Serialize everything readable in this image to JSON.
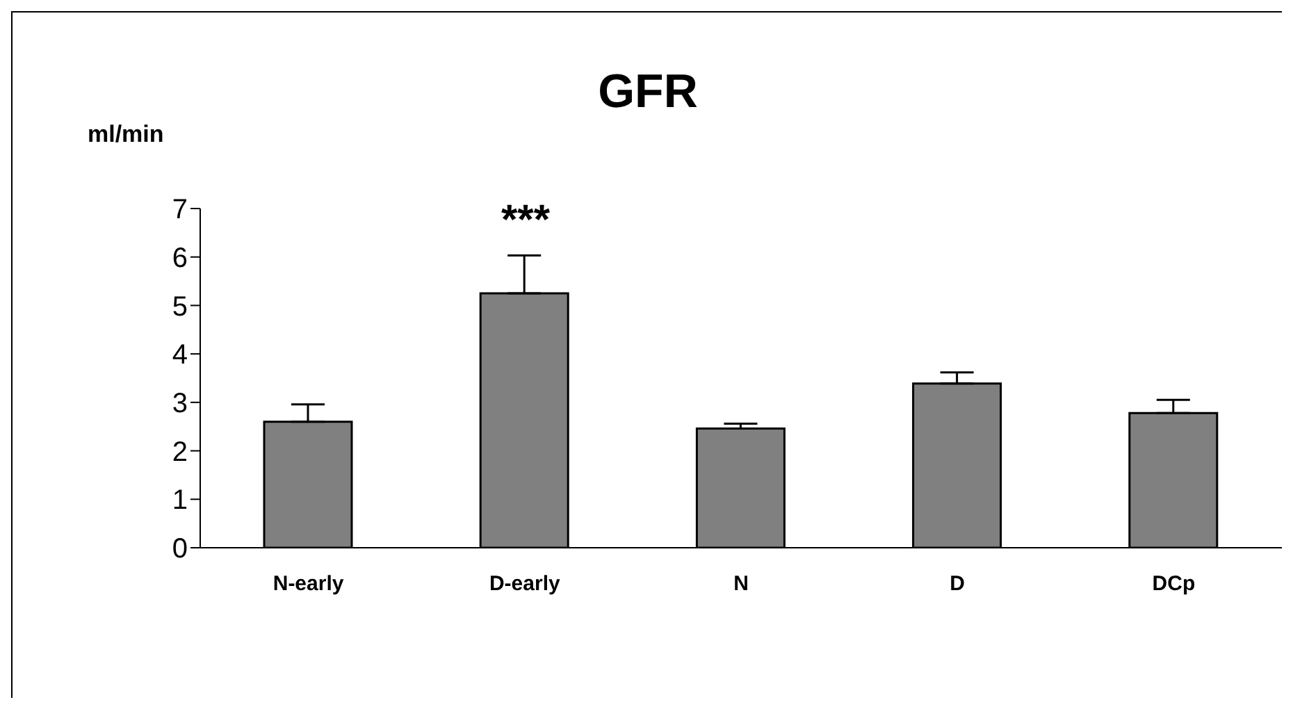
{
  "chart_data": {
    "type": "bar",
    "title": "GFR",
    "ylabel": "ml/min",
    "categories": [
      "N-early",
      "D-early",
      "N",
      "D",
      "DCp"
    ],
    "values": [
      2.6,
      5.25,
      2.46,
      3.39,
      2.78
    ],
    "errors": [
      [
        2.6,
        2.96
      ],
      [
        5.25,
        6.03
      ],
      [
        2.46,
        2.56
      ],
      [
        3.39,
        3.62
      ],
      [
        2.78,
        3.05
      ]
    ],
    "color": "#808080",
    "ylim": [
      0,
      7
    ],
    "yticks": [
      0,
      1,
      2,
      3,
      4,
      5,
      6,
      7
    ],
    "grid": false,
    "legend": false,
    "annotations": [
      "***"
    ]
  }
}
